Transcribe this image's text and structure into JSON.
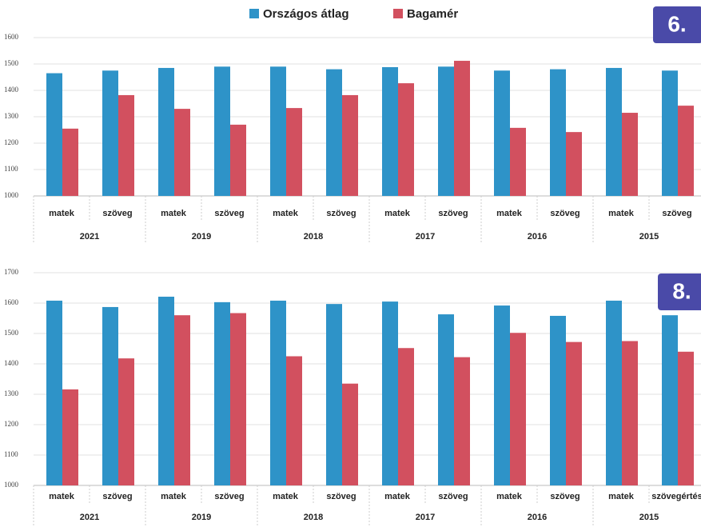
{
  "chart_data": [
    {
      "type": "bar",
      "badge": "6.",
      "categories": [
        "matek",
        "szöveg",
        "matek",
        "szöveg",
        "matek",
        "szöveg",
        "matek",
        "szöveg",
        "matek",
        "szöveg",
        "matek",
        "szöveg"
      ],
      "groups": [
        "2021",
        "2019",
        "2018",
        "2017",
        "2016",
        "2015"
      ],
      "series": [
        {
          "name": "Országos átlag",
          "color": "#2e93c8",
          "values": [
            1465,
            1475,
            1485,
            1490,
            1490,
            1480,
            1488,
            1490,
            1475,
            1480,
            1485,
            1475
          ]
        },
        {
          "name": "Bagamér",
          "color": "#d2505f",
          "values": [
            1255,
            1382,
            1330,
            1270,
            1333,
            1382,
            1427,
            1512,
            1258,
            1242,
            1315,
            1342
          ]
        }
      ],
      "ylim": [
        1000,
        1600
      ],
      "yticks": [
        1000,
        1100,
        1200,
        1300,
        1400,
        1500,
        1600
      ],
      "grid": true
    },
    {
      "type": "bar",
      "badge": "8.",
      "categories": [
        "matek",
        "szöveg",
        "matek",
        "szöveg",
        "matek",
        "szöveg",
        "matek",
        "szöveg",
        "matek",
        "szöveg",
        "matek",
        "szövegértés"
      ],
      "groups": [
        "2021",
        "2019",
        "2018",
        "2017",
        "2016",
        "2015"
      ],
      "series": [
        {
          "color": "#2e93c8",
          "values": [
            1608,
            1587,
            1621,
            1603,
            1608,
            1597,
            1605,
            1563,
            1592,
            1558,
            1608,
            1560
          ]
        },
        {
          "color": "#d2505f",
          "values": [
            1316,
            1418,
            1560,
            1567,
            1425,
            1335,
            1452,
            1422,
            1502,
            1472,
            1475,
            1440
          ]
        }
      ],
      "ylim": [
        1000,
        1700
      ],
      "yticks": [
        1000,
        1100,
        1200,
        1300,
        1400,
        1500,
        1600,
        1700
      ],
      "grid": true
    }
  ]
}
